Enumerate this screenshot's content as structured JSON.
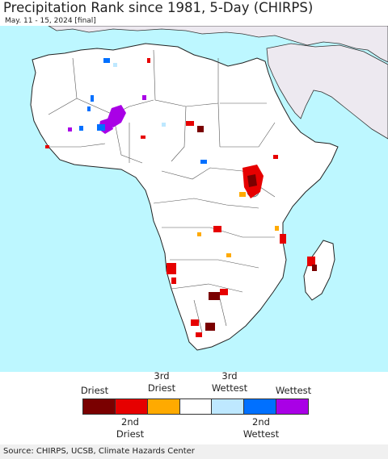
{
  "title": "Precipitation Rank since 1981, 5-Day (CHIRPS)",
  "subtitle": "May. 11 - 15, 2024 [final]",
  "legend": {
    "top_labels": [
      "Driest",
      "3rd\nDriest",
      "3rd\nWettest",
      "Wettest"
    ],
    "bottom_labels": [
      "2nd\nDriest",
      "2nd\nWettest"
    ],
    "categories": [
      {
        "label": "Driest",
        "color": "#7a0000"
      },
      {
        "label": "2nd Driest",
        "color": "#e60000"
      },
      {
        "label": "3rd Driest",
        "color": "#ffaa00"
      },
      {
        "label": "Normal",
        "color": "#ffffff"
      },
      {
        "label": "3rd Wettest",
        "color": "#bee8ff"
      },
      {
        "label": "2nd Wettest",
        "color": "#0070ff"
      },
      {
        "label": "Wettest",
        "color": "#a900e6"
      }
    ]
  },
  "colors": {
    "ocean": "#bdf7ff",
    "land": "#ffffff",
    "masked_land": "#ede9f0",
    "border": "#333333"
  },
  "source": "Source: CHIRPS, UCSB, Climate Hazards Center"
}
